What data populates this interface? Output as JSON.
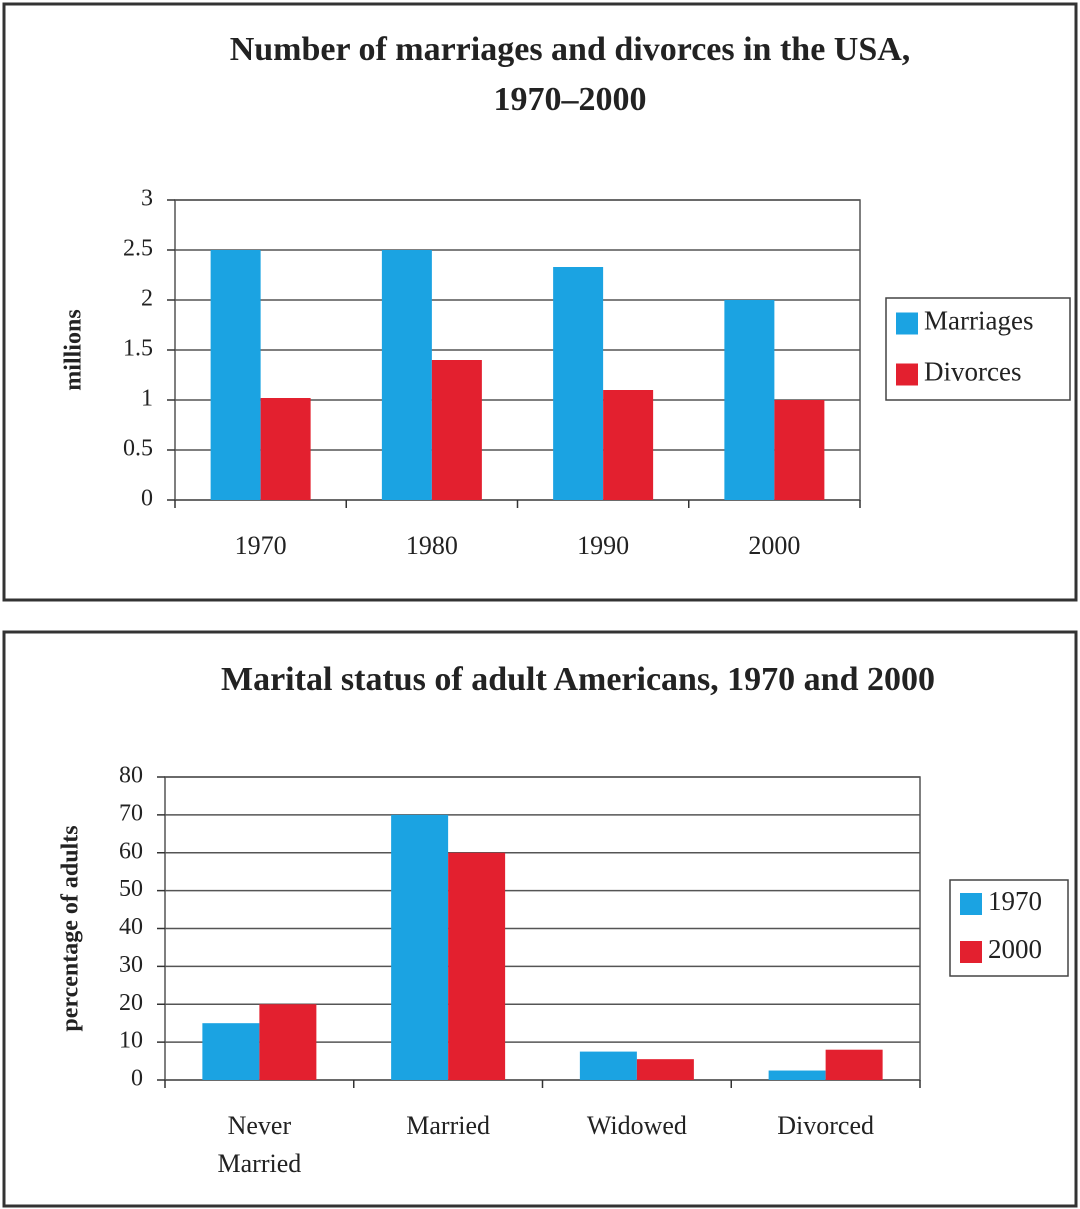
{
  "chart_data": [
    {
      "type": "bar",
      "title": "Number of marriages and divorces in the USA, 1970–2000",
      "ylabel": "millions",
      "categories": [
        "1970",
        "1980",
        "1990",
        "2000"
      ],
      "series": [
        {
          "name": "Marriages",
          "color": "#1ba3e2",
          "values": [
            2.5,
            2.5,
            2.33,
            2.0
          ]
        },
        {
          "name": "Divorces",
          "color": "#e3202f",
          "values": [
            1.02,
            1.4,
            1.1,
            1.0
          ]
        }
      ],
      "ylim": [
        0,
        3
      ],
      "yticks": [
        0,
        0.5,
        1,
        1.5,
        2,
        2.5,
        3
      ],
      "grid": true,
      "legend": "right"
    },
    {
      "type": "bar",
      "title": "Marital status of adult Americans, 1970 and 2000",
      "ylabel": "percentage of adults",
      "categories": [
        "Never Married",
        "Married",
        "Widowed",
        "Divorced"
      ],
      "series": [
        {
          "name": "1970",
          "color": "#1ba3e2",
          "values": [
            15,
            70,
            7.5,
            2.5
          ]
        },
        {
          "name": "2000",
          "color": "#e3202f",
          "values": [
            20,
            60,
            5.5,
            8
          ]
        }
      ],
      "ylim": [
        0,
        80
      ],
      "yticks": [
        0,
        10,
        20,
        30,
        40,
        50,
        60,
        70,
        80
      ],
      "grid": true,
      "legend": "right"
    }
  ]
}
